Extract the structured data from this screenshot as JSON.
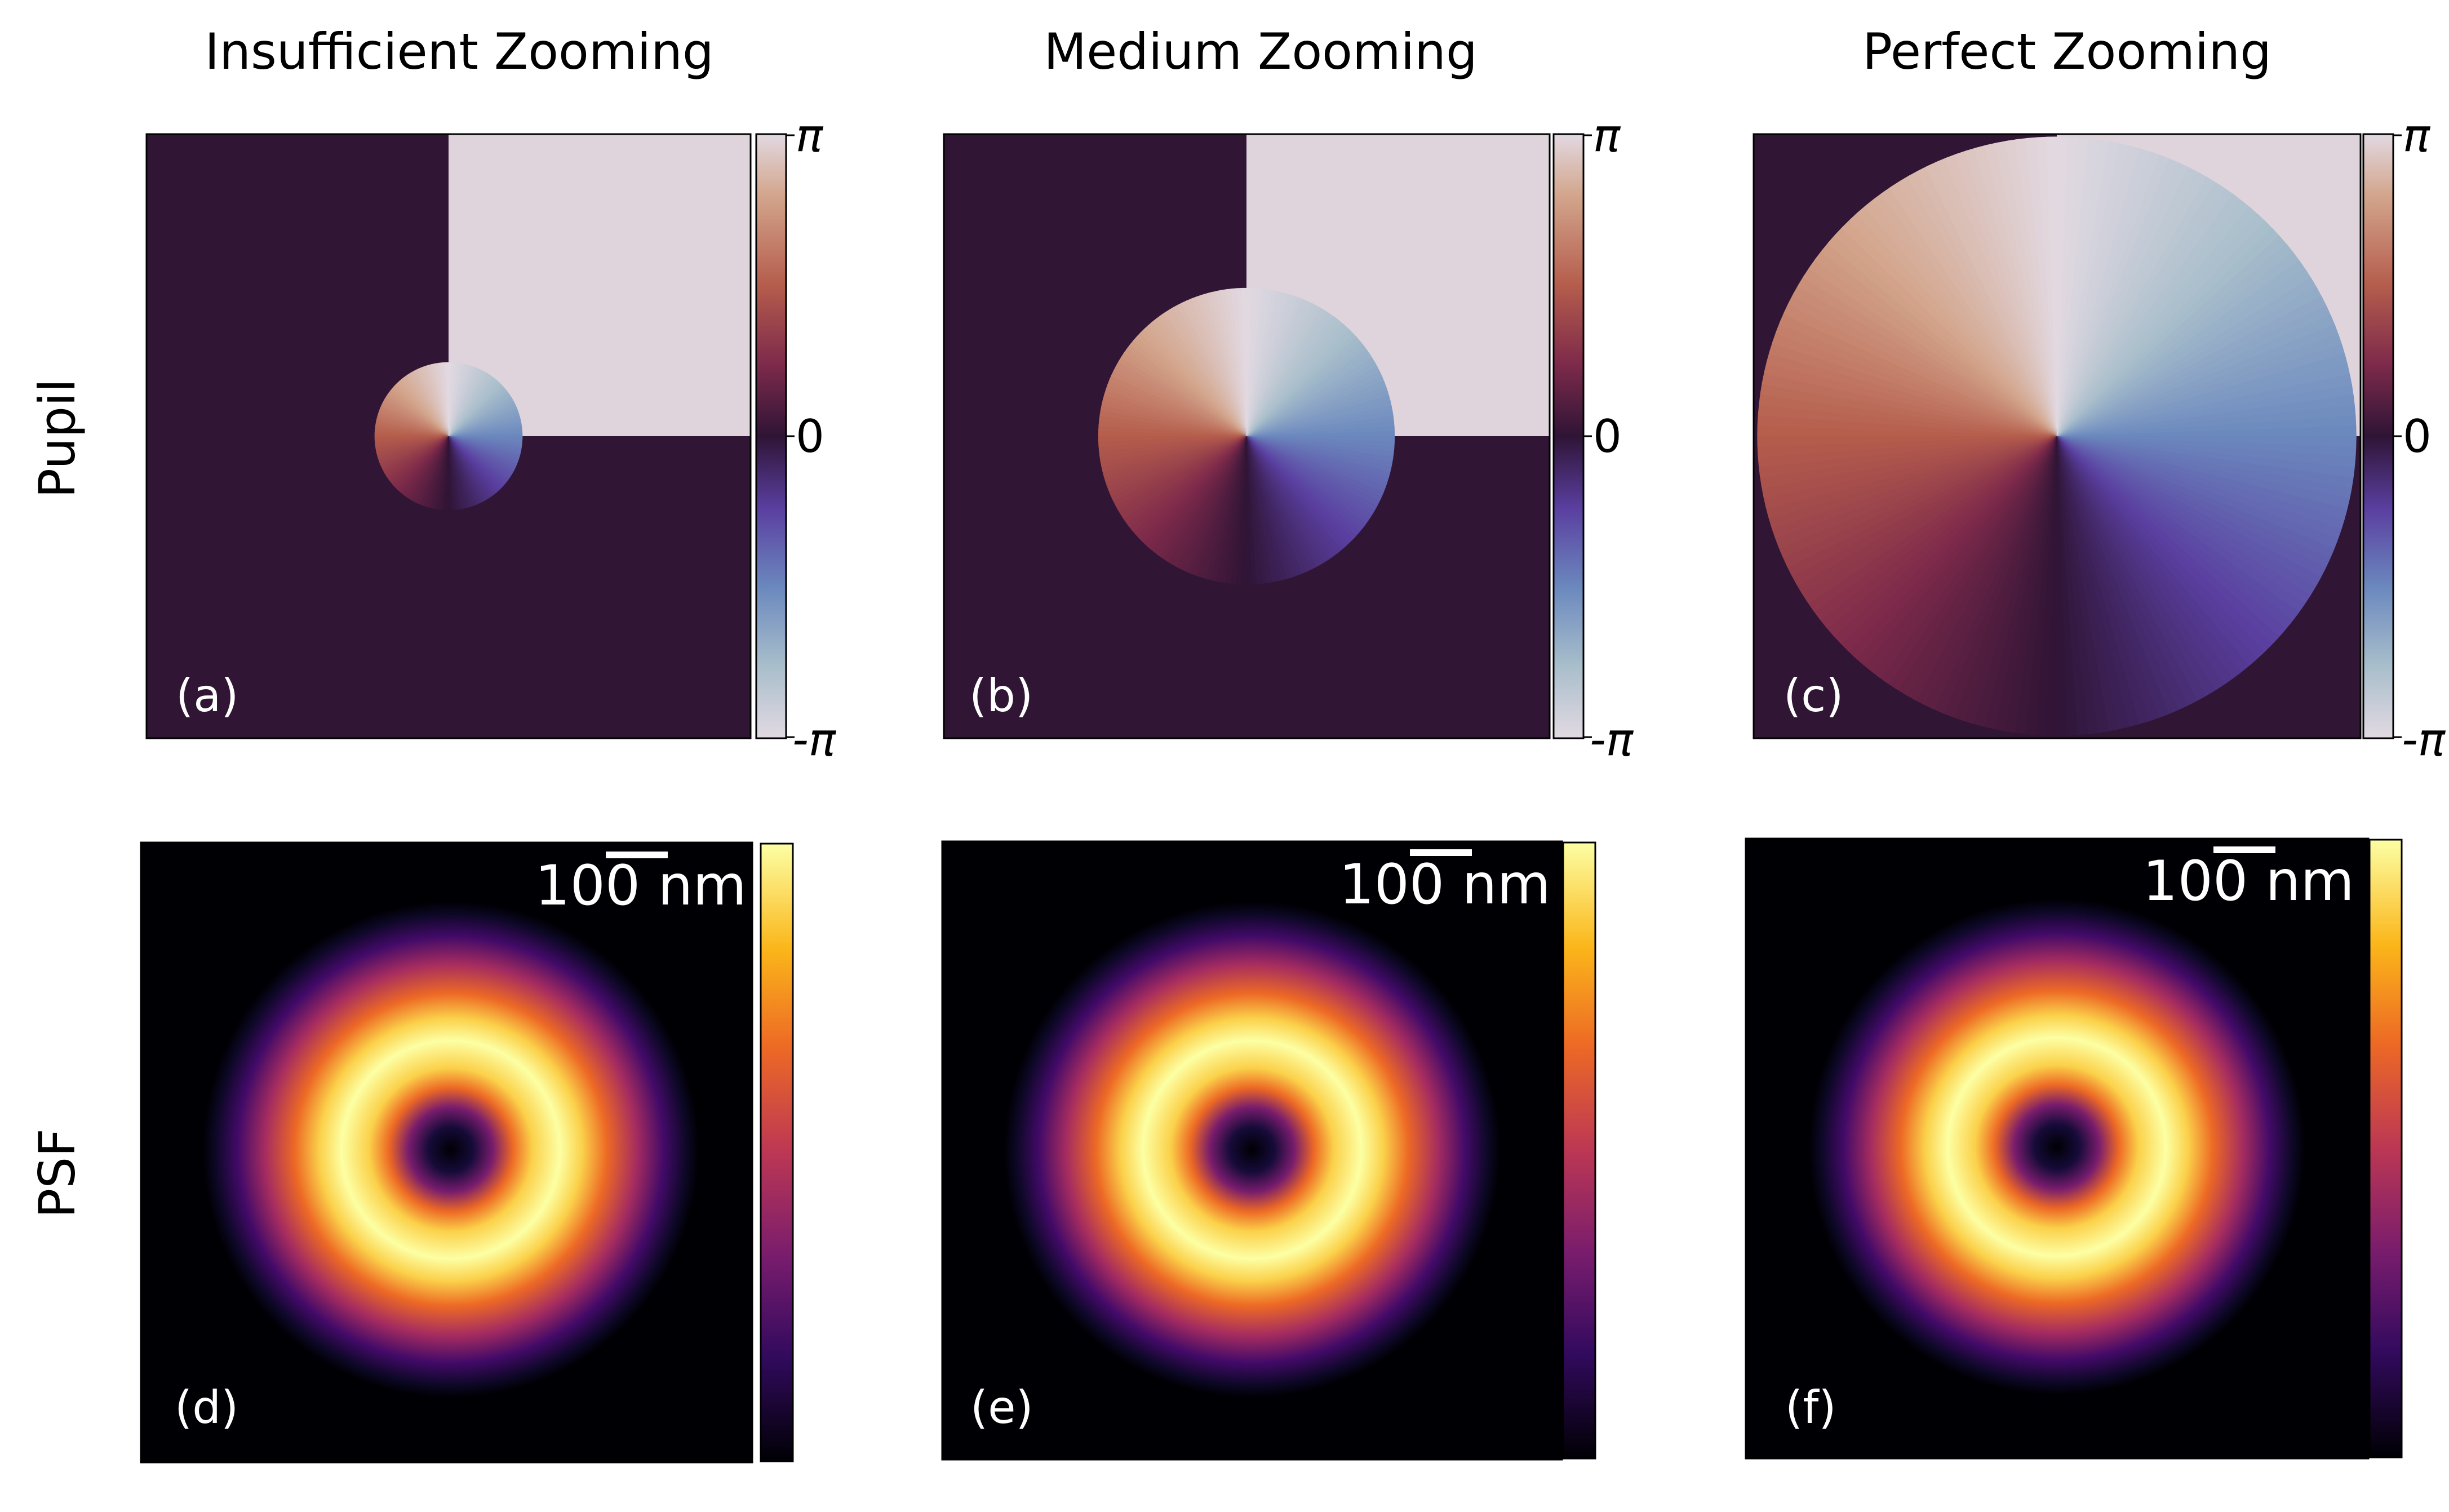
{
  "figure": {
    "columns": [
      {
        "title": "Insufficient Zooming"
      },
      {
        "title": "Medium Zooming"
      },
      {
        "title": "Perfect Zooming"
      }
    ],
    "rows": [
      {
        "label": "Pupil"
      },
      {
        "label": "PSF"
      }
    ],
    "panels": [
      {
        "tag": "(a)",
        "kind": "pupil",
        "vortex_diameter_fraction": 0.245
      },
      {
        "tag": "(b)",
        "kind": "pupil",
        "vortex_diameter_fraction": 0.49
      },
      {
        "tag": "(c)",
        "kind": "pupil",
        "vortex_diameter_fraction": 0.99
      },
      {
        "tag": "(d)",
        "kind": "psf",
        "scale_bar": "100 nm"
      },
      {
        "tag": "(e)",
        "kind": "psf",
        "scale_bar": "100 nm"
      },
      {
        "tag": "(f)",
        "kind": "psf",
        "scale_bar": "100 nm"
      }
    ],
    "phase_colorbar": {
      "top": "π",
      "mid": "0",
      "bottom": "-π"
    },
    "colors": {
      "pupil_dark": "#301535",
      "pupil_light": "#e0d4dc",
      "psf_background": "#000004",
      "tag_text": "#ffffff"
    },
    "twilight_colormap": [
      "#e2d9e2",
      "#a8becb",
      "#6b88be",
      "#5a3fa0",
      "#2f1436",
      "#7e2a4b",
      "#b55d4c",
      "#d3a68d",
      "#e2d9e2"
    ],
    "inferno_colormap": [
      "#000004",
      "#320a5e",
      "#781c6d",
      "#bc3754",
      "#ed6925",
      "#fbb61a",
      "#fcffa4"
    ]
  }
}
